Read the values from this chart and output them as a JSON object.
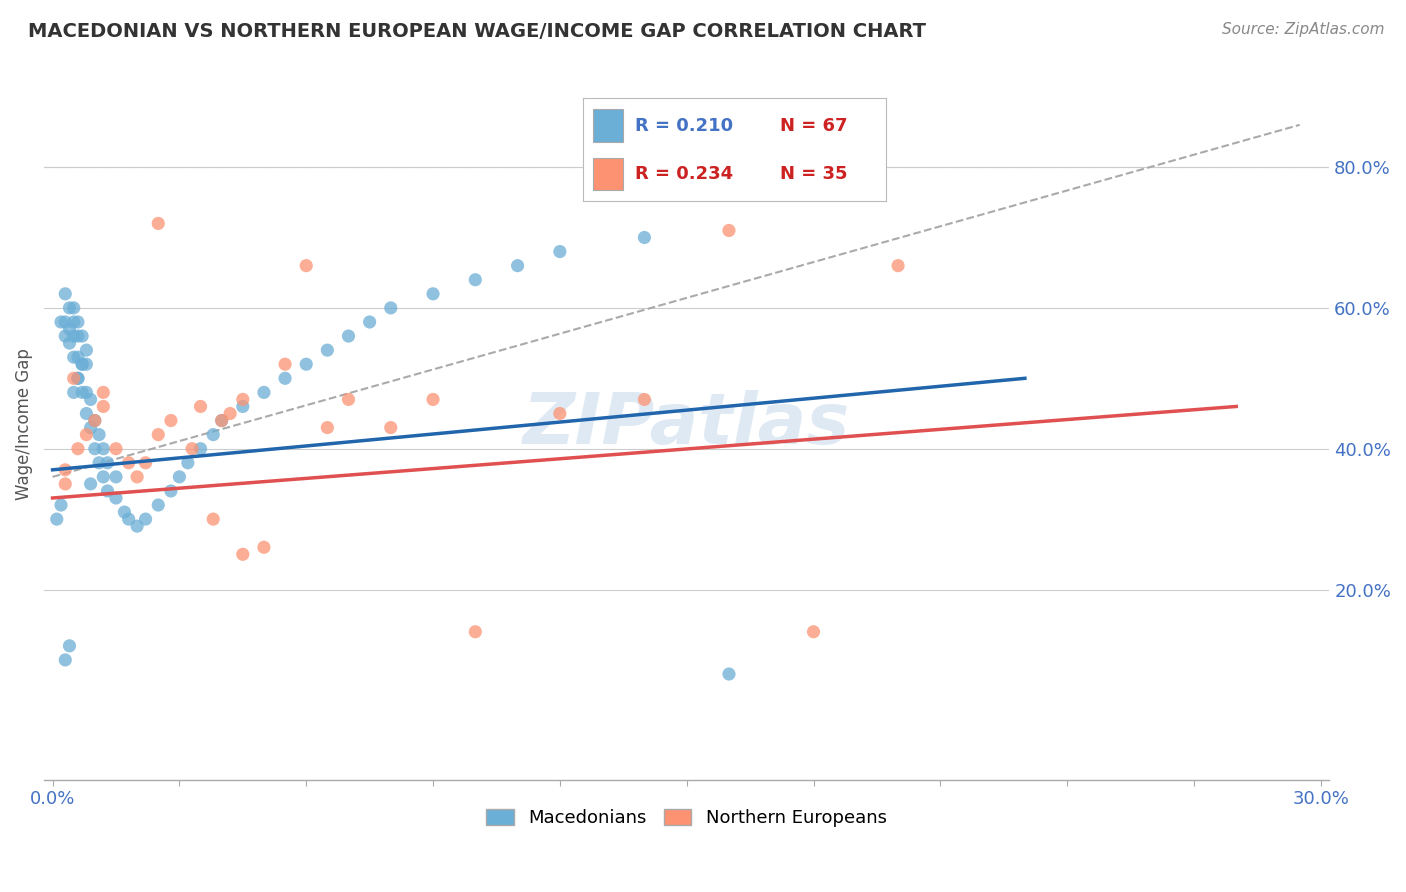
{
  "title": "MACEDONIAN VS NORTHERN EUROPEAN WAGE/INCOME GAP CORRELATION CHART",
  "source": "Source: ZipAtlas.com",
  "ylabel": "Wage/Income Gap",
  "macedonian_color": "#6baed6",
  "northern_color": "#fc9272",
  "macedonian_line_color": "#2166ac",
  "northern_line_color": "#e05050",
  "dashed_line_color": "#aaaaaa",
  "background_color": "#ffffff",
  "mac_x": [
    0.001,
    0.002,
    0.002,
    0.003,
    0.003,
    0.003,
    0.004,
    0.004,
    0.004,
    0.005,
    0.005,
    0.005,
    0.005,
    0.006,
    0.006,
    0.006,
    0.006,
    0.007,
    0.007,
    0.007,
    0.008,
    0.008,
    0.008,
    0.009,
    0.009,
    0.01,
    0.01,
    0.011,
    0.011,
    0.012,
    0.012,
    0.013,
    0.013,
    0.015,
    0.015,
    0.017,
    0.018,
    0.02,
    0.022,
    0.025,
    0.028,
    0.03,
    0.032,
    0.035,
    0.038,
    0.04,
    0.045,
    0.05,
    0.055,
    0.06,
    0.065,
    0.07,
    0.075,
    0.08,
    0.09,
    0.1,
    0.11,
    0.12,
    0.14,
    0.16,
    0.003,
    0.004,
    0.005,
    0.006,
    0.007,
    0.008,
    0.009
  ],
  "mac_y": [
    0.3,
    0.32,
    0.58,
    0.56,
    0.58,
    0.62,
    0.55,
    0.57,
    0.6,
    0.53,
    0.56,
    0.58,
    0.6,
    0.5,
    0.53,
    0.56,
    0.58,
    0.48,
    0.52,
    0.56,
    0.45,
    0.48,
    0.52,
    0.43,
    0.47,
    0.4,
    0.44,
    0.38,
    0.42,
    0.36,
    0.4,
    0.34,
    0.38,
    0.33,
    0.36,
    0.31,
    0.3,
    0.29,
    0.3,
    0.32,
    0.34,
    0.36,
    0.38,
    0.4,
    0.42,
    0.44,
    0.46,
    0.48,
    0.5,
    0.52,
    0.54,
    0.56,
    0.58,
    0.6,
    0.62,
    0.64,
    0.66,
    0.68,
    0.7,
    0.08,
    0.1,
    0.12,
    0.48,
    0.5,
    0.52,
    0.54,
    0.35
  ],
  "nor_x": [
    0.003,
    0.006,
    0.008,
    0.01,
    0.012,
    0.015,
    0.018,
    0.02,
    0.022,
    0.025,
    0.028,
    0.033,
    0.035,
    0.038,
    0.04,
    0.042,
    0.045,
    0.05,
    0.055,
    0.06,
    0.065,
    0.07,
    0.08,
    0.09,
    0.1,
    0.12,
    0.14,
    0.16,
    0.18,
    0.2,
    0.003,
    0.005,
    0.012,
    0.025,
    0.045
  ],
  "nor_y": [
    0.37,
    0.4,
    0.42,
    0.44,
    0.46,
    0.4,
    0.38,
    0.36,
    0.38,
    0.42,
    0.44,
    0.4,
    0.46,
    0.3,
    0.44,
    0.45,
    0.47,
    0.26,
    0.52,
    0.66,
    0.43,
    0.47,
    0.43,
    0.47,
    0.14,
    0.45,
    0.47,
    0.71,
    0.14,
    0.66,
    0.35,
    0.5,
    0.48,
    0.72,
    0.25
  ],
  "mac_line_x": [
    0.0,
    0.23
  ],
  "mac_line_y": [
    0.37,
    0.5
  ],
  "nor_line_x": [
    0.0,
    0.28
  ],
  "nor_line_y": [
    0.33,
    0.46
  ],
  "dash_line_x": [
    0.0,
    0.295
  ],
  "dash_line_y": [
    0.36,
    0.86
  ],
  "xlim": [
    -0.002,
    0.302
  ],
  "ylim": [
    -0.07,
    0.94
  ],
  "right_ytick_vals": [
    0.2,
    0.4,
    0.6,
    0.8
  ],
  "right_ytick_labels": [
    "20.0%",
    "40.0%",
    "60.0%",
    "80.0%"
  ],
  "legend_R1": "R = 0.210",
  "legend_N1": "N = 67",
  "legend_R2": "R = 0.234",
  "legend_N2": "N = 35",
  "blue_text_color": "#4472c4",
  "red_text_color": "#cc2222"
}
